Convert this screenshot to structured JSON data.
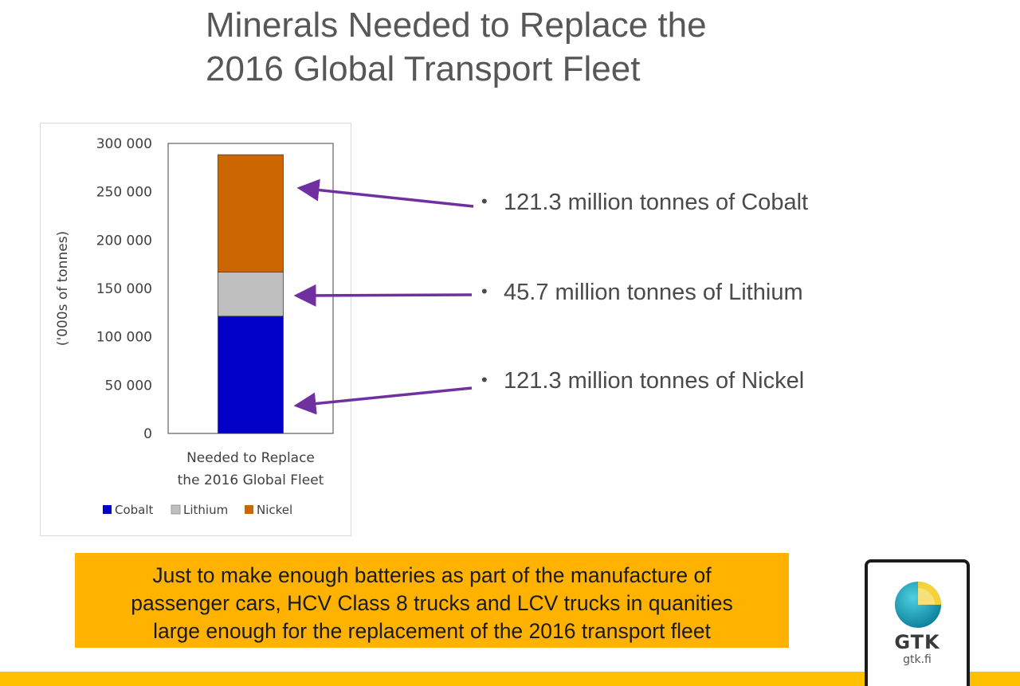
{
  "title": {
    "line1": "Minerals Needed to Replace the",
    "line2": "2016 Global Transport Fleet"
  },
  "chart_data": {
    "type": "bar",
    "stacked": true,
    "categories": [
      "Needed to Replace the 2016 Global Fleet"
    ],
    "category_label_lines": [
      "Needed to Replace",
      "the 2016 Global Fleet"
    ],
    "series": [
      {
        "name": "Cobalt",
        "values": [
          121300
        ],
        "color": "#0000c8"
      },
      {
        "name": "Lithium",
        "values": [
          45700
        ],
        "color": "#bfbfbf"
      },
      {
        "name": "Nickel",
        "values": [
          121300
        ],
        "color": "#cc6600"
      }
    ],
    "ylabel": "('000s of tonnes)",
    "xlabel": "",
    "ylim": [
      0,
      300000
    ],
    "yticks": [
      0,
      50000,
      100000,
      150000,
      200000,
      250000,
      300000
    ],
    "ytick_labels": [
      "0",
      "50 000",
      "100 000",
      "150 000",
      "200 000",
      "250 000",
      "300 000"
    ],
    "grid": false,
    "legend_position": "bottom"
  },
  "annotations": [
    {
      "text": "121.3 million tonnes of Cobalt",
      "bullet": "•"
    },
    {
      "text": "45.7 million tonnes of Lithium",
      "bullet": "•"
    },
    {
      "text": "121.3 million tonnes of Nickel",
      "bullet": "•"
    }
  ],
  "arrow_color": "#7030a0",
  "callout": {
    "lines": [
      "Just to make enough batteries as part of the manufacture of",
      "passenger cars, HCV Class 8 trucks and LCV trucks in quanities",
      "large enough for the replacement of the 2016 transport fleet"
    ],
    "background": "#ffb300"
  },
  "logo": {
    "name": "GTK",
    "url": "gtk.fi",
    "icon": "globe-icon"
  },
  "bottom_bar_color": "#ffc000"
}
